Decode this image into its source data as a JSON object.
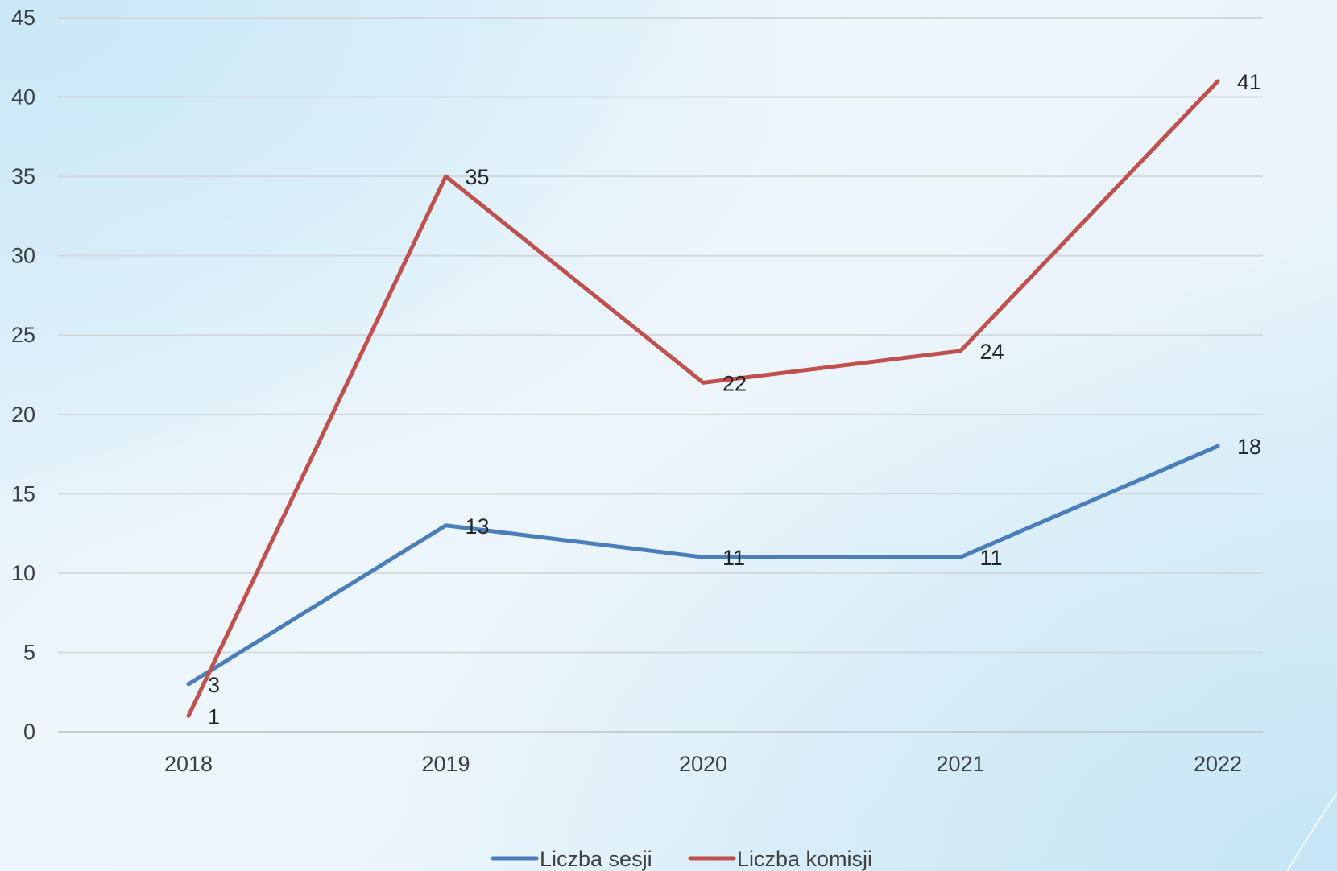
{
  "chart_data": {
    "type": "line",
    "categories": [
      "2018",
      "2019",
      "2020",
      "2021",
      "2022"
    ],
    "series": [
      {
        "name": "Liczba sesji",
        "values": [
          3,
          13,
          11,
          11,
          18
        ],
        "color": "#4a7ebb"
      },
      {
        "name": "Liczba komisji",
        "values": [
          1,
          35,
          22,
          24,
          41
        ],
        "color": "#c0504d"
      }
    ],
    "ylim": [
      0,
      45
    ],
    "yticks": [
      0,
      5,
      10,
      15,
      20,
      25,
      30,
      35,
      40,
      45
    ],
    "grid": true,
    "legend_position": "bottom-center",
    "data_labels": true
  }
}
